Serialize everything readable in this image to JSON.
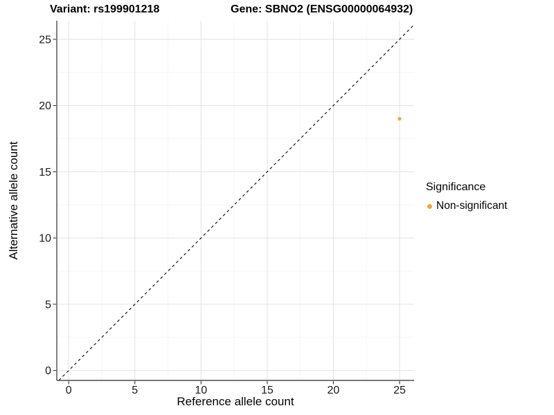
{
  "chart_data": {
    "type": "scatter",
    "title_left": "Variant: rs199901218",
    "title_right": "Gene: SBNO2 (ENSG00000064932)",
    "xlabel": "Reference allele count",
    "ylabel": "Alternative allele count",
    "xlim": [
      -0.9,
      26.1
    ],
    "ylim": [
      -0.75,
      26.4
    ],
    "xticks": [
      0,
      5,
      10,
      15,
      20,
      25
    ],
    "yticks": [
      0,
      5,
      10,
      15,
      20,
      25
    ],
    "xticks_minor": [
      2.5,
      7.5,
      12.5,
      17.5,
      22.5
    ],
    "yticks_minor": [
      2.5,
      7.5,
      12.5,
      17.5,
      22.5
    ],
    "grid": "major+minor",
    "identity_line": {
      "equation": "y = x",
      "style": "dashed",
      "color": "#000000"
    },
    "series": [
      {
        "name": "Non-significant",
        "color": "#F9A23C",
        "points": [
          {
            "x": 25,
            "y": 19
          }
        ]
      }
    ],
    "legend": {
      "title": "Significance",
      "position": "right",
      "entries": [
        {
          "label": "Non-significant",
          "color": "#F9A23C"
        }
      ]
    },
    "colors": {
      "background": "#FFFFFF",
      "grid_major": "#E4E4E4",
      "grid_minor": "#F2F2F2",
      "axis_line": "#4A4A4A",
      "tick_mark": "#333333",
      "tick_text": "#1A1A1A"
    }
  }
}
